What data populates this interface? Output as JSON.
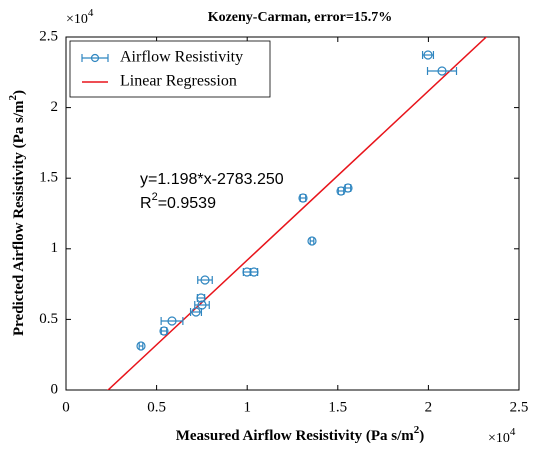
{
  "chart_data": {
    "type": "scatter",
    "title": "Kozeny-Carman, error=15.7%",
    "xlabel": {
      "text": "Measured Airflow Resistivity (Pa s/m",
      "sup": "2",
      "end": ")"
    },
    "ylabel": {
      "text": "Predicted Airflow Resistivity (Pa s/m",
      "sup": "2",
      "end": ")"
    },
    "x_exponent": {
      "base": "×10",
      "power": "4"
    },
    "y_exponent": {
      "base": "×10",
      "power": "4"
    },
    "xlim": [
      0,
      25000
    ],
    "ylim": [
      0,
      25000
    ],
    "xticks": [
      0,
      {
        "value": 5000,
        "label": "0.5"
      },
      {
        "value": 10000,
        "label": "1"
      },
      {
        "value": 15000,
        "label": "1.5"
      },
      {
        "value": 20000,
        "label": "2"
      },
      {
        "value": 25000,
        "label": "2.5"
      }
    ],
    "yticks": [
      0,
      {
        "value": 5000,
        "label": "0.5"
      },
      {
        "value": 10000,
        "label": "1"
      },
      {
        "value": 15000,
        "label": "1.5"
      },
      {
        "value": 20000,
        "label": "2"
      },
      {
        "value": 25000,
        "label": "2.5"
      }
    ],
    "legend": "upper left",
    "series": [
      {
        "name": "Airflow Resistivity",
        "color": "#2f86c0",
        "x": [
          4139,
          5408,
          5850,
          7174,
          7506,
          7450,
          7671,
          9989,
          10375,
          13576,
          13079,
          15177,
          15563,
          19978,
          20751
        ],
        "values": [
          3116,
          4178,
          4887,
          5524,
          6020,
          6516,
          7790,
          8357,
          8357,
          10552,
          13598,
          14094,
          14306,
          23725,
          22592
        ],
        "xerr": [
          100,
          150,
          600,
          300,
          400,
          200,
          400,
          200,
          200,
          100,
          150,
          150,
          150,
          300,
          800
        ]
      }
    ],
    "fit": {
      "name": "Linear Regression",
      "color": "#e8141b",
      "slope": 1.198,
      "intercept": -2783.25,
      "label": "y=1.198*x-2783.250",
      "r2": {
        "prefix": "R",
        "sup": "2",
        "text": "=0.9539"
      }
    }
  }
}
